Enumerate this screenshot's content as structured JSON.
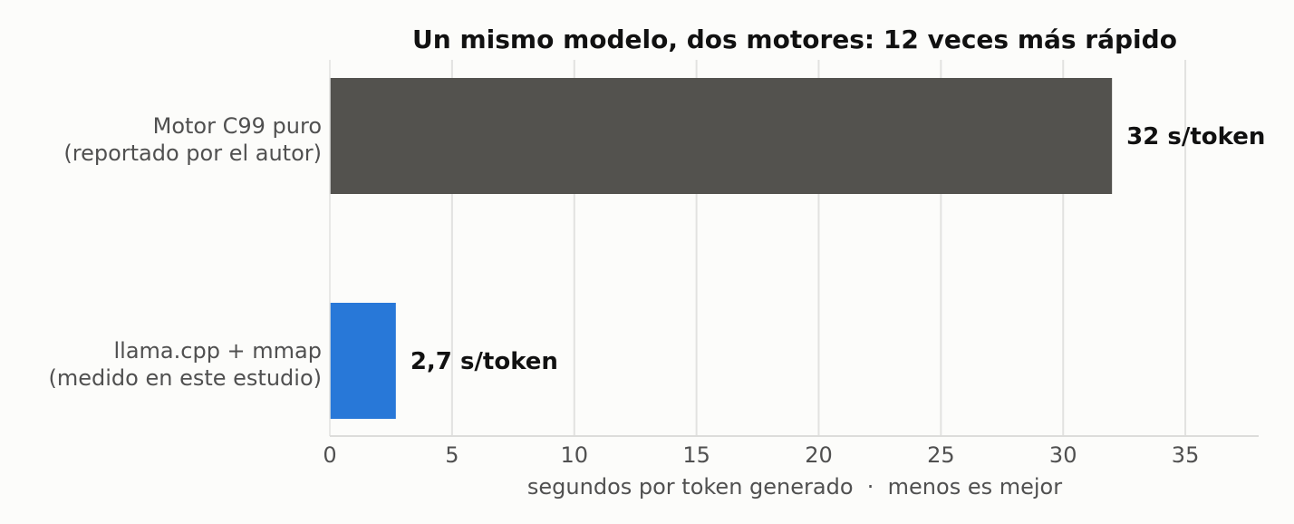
{
  "chart_data": {
    "type": "bar",
    "orientation": "horizontal",
    "title": "Un mismo modelo, dos motores: 12 veces más rápido",
    "xlabel": "segundos por token generado  ·  menos es mejor",
    "ylabel": "",
    "xlim": [
      0,
      38
    ],
    "xticks": [
      0,
      5,
      10,
      15,
      20,
      25,
      30,
      35
    ],
    "grid": "vertical",
    "categories": [
      [
        "Motor C99 puro",
        "(reportado por el autor)"
      ],
      [
        "llama.cpp + mmap",
        "(medido en este estudio)"
      ]
    ],
    "values": [
      32,
      2.7
    ],
    "value_labels": [
      "32 s/token",
      "2,7 s/token"
    ],
    "colors": [
      "#53524e",
      "#2878d8"
    ]
  }
}
